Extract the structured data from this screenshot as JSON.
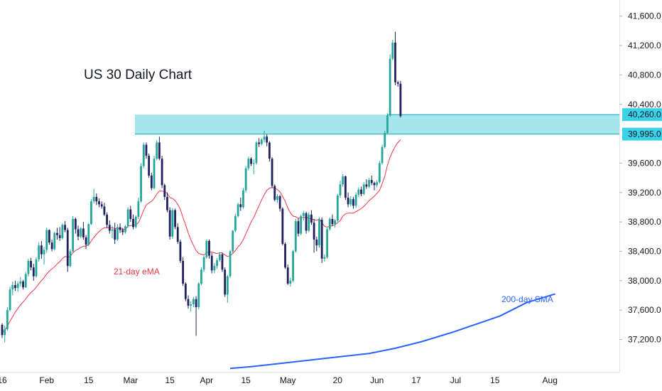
{
  "chart_data": {
    "type": "candlestick",
    "title": "US 30 Daily Chart",
    "y_ticks": [
      "41,600.0",
      "41,200.0",
      "40,800.0",
      "40,400.0",
      "39,600.0",
      "39,200.0",
      "38,800.0",
      "38,400.0",
      "38,000.0",
      "37,600.0",
      "37,200.0"
    ],
    "y_tick_values": [
      41600,
      41200,
      40800,
      40400,
      39600,
      39200,
      38800,
      38400,
      38000,
      37600,
      37200
    ],
    "x_ticks": [
      "16",
      "Feb",
      "15",
      "Mar",
      "15",
      "Apr",
      "15",
      "May",
      "20",
      "Jun",
      "17",
      "Jul",
      "15",
      "Aug"
    ],
    "x_tick_index": [
      0,
      17,
      33,
      49,
      64,
      78,
      93,
      109,
      128,
      143,
      158,
      173,
      188,
      209
    ],
    "ylim": [
      36760,
      41820
    ],
    "grid": false,
    "colors": {
      "up": "#26a69a",
      "down": "#1e2060",
      "ema": "#f23645",
      "sma": "#2962ff",
      "zone": "#a5e6ec",
      "zone_border": "#1aa3b3",
      "level_tag": "#3ad2e6"
    },
    "zone": {
      "low": 39995,
      "high": 40260
    },
    "levels": [
      {
        "value": 40260,
        "label": "40,260.0"
      },
      {
        "value": 39995,
        "label": "39,995.0"
      }
    ],
    "ema_label": "21-day eMA",
    "sma_label": "200-day SMA",
    "candles": [
      [
        37400,
        37420,
        37220,
        37260
      ],
      [
        37260,
        37390,
        37160,
        37340
      ],
      [
        37340,
        37640,
        37320,
        37600
      ],
      [
        37600,
        37920,
        37580,
        37880
      ],
      [
        37880,
        37990,
        37800,
        37940
      ],
      [
        37940,
        38000,
        37860,
        37900
      ],
      [
        37900,
        37990,
        37850,
        37960
      ],
      [
        37960,
        38050,
        37920,
        37990
      ],
      [
        37990,
        38010,
        37880,
        37910
      ],
      [
        37910,
        38120,
        37900,
        38090
      ],
      [
        38090,
        38300,
        38060,
        38270
      ],
      [
        38270,
        38310,
        38140,
        38180
      ],
      [
        38180,
        38230,
        38000,
        38060
      ],
      [
        38060,
        38320,
        38040,
        38290
      ],
      [
        38290,
        38520,
        38260,
        38480
      ],
      [
        38480,
        38540,
        38300,
        38360
      ],
      [
        38360,
        38460,
        38220,
        38420
      ],
      [
        38420,
        38720,
        38380,
        38690
      ],
      [
        38690,
        38700,
        38490,
        38520
      ],
      [
        38520,
        38560,
        38400,
        38430
      ],
      [
        38430,
        38670,
        38410,
        38650
      ],
      [
        38650,
        38720,
        38560,
        38620
      ],
      [
        38620,
        38730,
        38540,
        38580
      ],
      [
        38580,
        38780,
        38560,
        38760
      ],
      [
        38760,
        38810,
        38660,
        38690
      ],
      [
        38690,
        38720,
        38120,
        38200
      ],
      [
        38200,
        38430,
        38180,
        38400
      ],
      [
        38400,
        38880,
        38380,
        38840
      ],
      [
        38840,
        38860,
        38640,
        38700
      ],
      [
        38700,
        38750,
        38550,
        38600
      ],
      [
        38600,
        38730,
        38580,
        38710
      ],
      [
        38710,
        38800,
        38560,
        38590
      ],
      [
        38590,
        38620,
        38430,
        38490
      ],
      [
        38490,
        38780,
        38470,
        38770
      ],
      [
        38770,
        39110,
        38760,
        39080
      ],
      [
        39080,
        39250,
        39050,
        39140
      ],
      [
        39140,
        39190,
        39030,
        39080
      ],
      [
        39080,
        39120,
        39000,
        39040
      ],
      [
        39040,
        39080,
        38980,
        39010
      ],
      [
        39010,
        39060,
        38880,
        38900
      ],
      [
        38900,
        38930,
        38720,
        38760
      ],
      [
        38760,
        38820,
        38640,
        38680
      ],
      [
        38680,
        38750,
        38580,
        38700
      ],
      [
        38700,
        38790,
        38500,
        38560
      ],
      [
        38560,
        38770,
        38540,
        38730
      ],
      [
        38730,
        38780,
        38650,
        38690
      ],
      [
        38690,
        38720,
        38620,
        38660
      ],
      [
        38660,
        38760,
        38640,
        38740
      ],
      [
        38740,
        39000,
        38720,
        38970
      ],
      [
        38970,
        39020,
        38800,
        38840
      ],
      [
        38840,
        38900,
        38700,
        38730
      ],
      [
        38730,
        38890,
        38710,
        38870
      ],
      [
        38870,
        39130,
        38840,
        39080
      ],
      [
        39080,
        39600,
        39060,
        39560
      ],
      [
        39560,
        39880,
        39530,
        39850
      ],
      [
        39850,
        39880,
        39660,
        39700
      ],
      [
        39700,
        39730,
        39400,
        39430
      ],
      [
        39430,
        39470,
        39230,
        39260
      ],
      [
        39260,
        39700,
        39240,
        39660
      ],
      [
        39660,
        39910,
        39640,
        39880
      ],
      [
        39880,
        39960,
        39640,
        39660
      ],
      [
        39660,
        39700,
        39260,
        39300
      ],
      [
        39300,
        39320,
        39100,
        39140
      ],
      [
        39140,
        39200,
        38930,
        38960
      ],
      [
        38960,
        39000,
        38560,
        38600
      ],
      [
        38600,
        38990,
        38570,
        38960
      ],
      [
        38960,
        38980,
        38700,
        38730
      ],
      [
        38730,
        38780,
        38500,
        38530
      ],
      [
        38530,
        38560,
        38240,
        38270
      ],
      [
        38270,
        38320,
        37930,
        37960
      ],
      [
        37960,
        37980,
        37720,
        37750
      ],
      [
        37750,
        37800,
        37620,
        37660
      ],
      [
        37660,
        37720,
        37580,
        37680
      ],
      [
        37680,
        37780,
        37640,
        37750
      ],
      [
        37750,
        37790,
        37250,
        37640
      ],
      [
        37640,
        37980,
        37610,
        37960
      ],
      [
        37960,
        38180,
        37940,
        38150
      ],
      [
        38150,
        38340,
        38120,
        38320
      ],
      [
        38320,
        38560,
        38300,
        38540
      ],
      [
        38540,
        38560,
        38300,
        38340
      ],
      [
        38340,
        38380,
        38100,
        38140
      ],
      [
        38140,
        38240,
        38100,
        38200
      ],
      [
        38200,
        38310,
        38160,
        38280
      ],
      [
        38280,
        38390,
        38260,
        38360
      ],
      [
        38360,
        38380,
        38120,
        38150
      ],
      [
        38150,
        38180,
        37780,
        37810
      ],
      [
        37810,
        38080,
        37700,
        38060
      ],
      [
        38060,
        38420,
        38040,
        38400
      ],
      [
        38400,
        38690,
        38380,
        38680
      ],
      [
        38680,
        38910,
        38660,
        38880
      ],
      [
        38880,
        39060,
        38860,
        39040
      ],
      [
        39040,
        39130,
        38950,
        39000
      ],
      [
        39000,
        39260,
        38980,
        39230
      ],
      [
        39230,
        39560,
        39200,
        39530
      ],
      [
        39530,
        39690,
        39500,
        39660
      ],
      [
        39660,
        39680,
        39560,
        39590
      ],
      [
        39590,
        39650,
        39450,
        39600
      ],
      [
        39600,
        39900,
        39580,
        39880
      ],
      [
        39880,
        39940,
        39820,
        39860
      ],
      [
        39860,
        39940,
        39840,
        39920
      ],
      [
        39920,
        40040,
        39880,
        39960
      ],
      [
        39960,
        39990,
        39830,
        39880
      ],
      [
        39880,
        39900,
        39620,
        39660
      ],
      [
        39660,
        39680,
        39260,
        39290
      ],
      [
        39290,
        39310,
        39080,
        39100
      ],
      [
        39100,
        39180,
        39060,
        39150
      ],
      [
        39150,
        39170,
        38940,
        38980
      ],
      [
        38980,
        39000,
        38480,
        38500
      ],
      [
        38500,
        38520,
        38160,
        38180
      ],
      [
        38180,
        38220,
        37940,
        37960
      ],
      [
        37960,
        38040,
        37920,
        38000
      ],
      [
        38000,
        38420,
        37980,
        38400
      ],
      [
        38400,
        38840,
        38380,
        38810
      ],
      [
        38810,
        38850,
        38600,
        38640
      ],
      [
        38640,
        38900,
        38620,
        38880
      ],
      [
        38880,
        38950,
        38820,
        38920
      ],
      [
        38920,
        38940,
        38640,
        38680
      ],
      [
        38680,
        38930,
        38660,
        38900
      ],
      [
        38900,
        38960,
        38760,
        38790
      ],
      [
        38790,
        38840,
        38380,
        38560
      ],
      [
        38560,
        38600,
        38400,
        38480
      ],
      [
        38480,
        38860,
        38450,
        38830
      ],
      [
        38830,
        38860,
        38240,
        38300
      ],
      [
        38300,
        38360,
        38260,
        38320
      ],
      [
        38320,
        38720,
        38300,
        38700
      ],
      [
        38700,
        38860,
        38680,
        38840
      ],
      [
        38840,
        38900,
        38740,
        38770
      ],
      [
        38770,
        38840,
        38720,
        38820
      ],
      [
        38820,
        39180,
        38800,
        39160
      ],
      [
        39160,
        39360,
        39130,
        39310
      ],
      [
        39310,
        39450,
        39280,
        39420
      ],
      [
        39420,
        39430,
        39100,
        39130
      ],
      [
        39130,
        39200,
        39000,
        39040
      ],
      [
        39040,
        39150,
        39010,
        39110
      ],
      [
        39110,
        39140,
        38980,
        39020
      ],
      [
        39020,
        39200,
        38990,
        39170
      ],
      [
        39170,
        39270,
        39140,
        39240
      ],
      [
        39240,
        39280,
        39150,
        39180
      ],
      [
        39180,
        39340,
        39160,
        39310
      ],
      [
        39310,
        39380,
        39250,
        39280
      ],
      [
        39280,
        39400,
        39260,
        39370
      ],
      [
        39370,
        39430,
        39300,
        39330
      ],
      [
        39330,
        39350,
        39230,
        39300
      ],
      [
        39300,
        39370,
        39270,
        39340
      ],
      [
        39340,
        39630,
        39320,
        39600
      ],
      [
        39600,
        39850,
        39580,
        39820
      ],
      [
        39820,
        40040,
        39800,
        40010
      ],
      [
        40010,
        40280,
        39990,
        40250
      ],
      [
        40250,
        41080,
        40230,
        41020
      ],
      [
        41020,
        41280,
        41000,
        41240
      ],
      [
        41240,
        41390,
        40660,
        40700
      ],
      [
        40700,
        40720,
        40640,
        40680
      ],
      [
        40680,
        40720,
        40220,
        40240
      ]
    ],
    "ema21": [
      37290,
      37330,
      37380,
      37450,
      37510,
      37570,
      37620,
      37670,
      37710,
      37750,
      37800,
      37840,
      37870,
      37910,
      37960,
      38000,
      38040,
      38090,
      38130,
      38160,
      38190,
      38230,
      38260,
      38300,
      38330,
      38320,
      38330,
      38380,
      38410,
      38430,
      38450,
      38470,
      38470,
      38490,
      38540,
      38590,
      38630,
      38670,
      38700,
      38720,
      38720,
      38720,
      38720,
      38710,
      38710,
      38710,
      38700,
      38700,
      38740,
      38750,
      38750,
      38760,
      38790,
      38870,
      38960,
      39030,
      39060,
      39080,
      39120,
      39180,
      39220,
      39220,
      39210,
      39190,
      39130,
      39120,
      39090,
      39040,
      38970,
      38860,
      38760,
      38650,
      38560,
      38480,
      38410,
      38370,
      38360,
      38350,
      38380,
      38390,
      38390,
      38380,
      38370,
      38380,
      38380,
      38350,
      38330,
      38340,
      38370,
      38410,
      38460,
      38500,
      38560,
      38640,
      38720,
      38800,
      38860,
      38940,
      39020,
      39100,
      39170,
      39230,
      39260,
      39270,
      39260,
      39240,
      39210,
      39150,
      39080,
      38990,
      38920,
      38880,
      38870,
      38850,
      38860,
      38860,
      38860,
      38850,
      38840,
      38830,
      38820,
      38840,
      38790,
      38740,
      38730,
      38740,
      38750,
      38760,
      38790,
      38820,
      38880,
      38910,
      38920,
      38920,
      38920,
      38940,
      38960,
      38980,
      39010,
      39050,
      39090,
      39120,
      39150,
      39190,
      39230,
      39320,
      39420,
      39570,
      39680,
      39760,
      39830,
      39880,
      39920
    ],
    "sma200": [
      [
        87,
        36805
      ],
      [
        95,
        36830
      ],
      [
        110,
        36890
      ],
      [
        125,
        36950
      ],
      [
        140,
        37010
      ],
      [
        150,
        37080
      ],
      [
        160,
        37170
      ],
      [
        172,
        37300
      ],
      [
        190,
        37520
      ],
      [
        200,
        37700
      ],
      [
        211,
        37820
      ]
    ]
  }
}
